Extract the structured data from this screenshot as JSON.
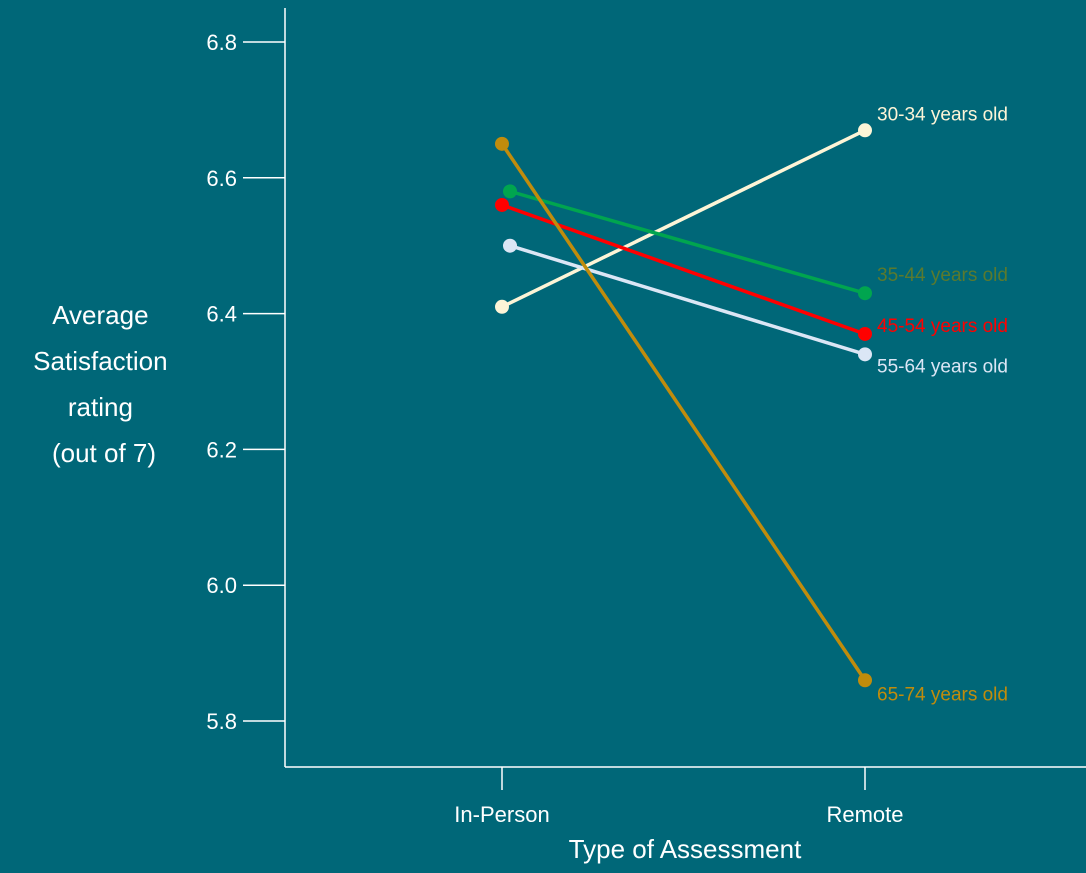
{
  "chart_data": {
    "type": "line",
    "categories": [
      "In-Person",
      "Remote"
    ],
    "xlabel": "Type of Assessment",
    "ylabel_lines": [
      "Average",
      "Satisfaction",
      "rating",
      "(out of 7)"
    ],
    "ylim": [
      5.8,
      6.8
    ],
    "yticks": [
      5.8,
      6.0,
      6.2,
      6.4,
      6.6,
      6.8
    ],
    "ytick_labels": [
      "5.8",
      "6.0",
      "6.2",
      "6.4",
      "6.6",
      "6.8"
    ],
    "grid": false,
    "background": "#006778",
    "series": [
      {
        "name": "30-34 years old",
        "values": [
          6.41,
          6.67
        ],
        "color": "#fdf5d7",
        "label_color": "#fdf5d7"
      },
      {
        "name": "35-44 years old",
        "values": [
          6.58,
          6.43
        ],
        "color": "#00a54f",
        "label_color": "#5a7a2e"
      },
      {
        "name": "45-54 years old",
        "values": [
          6.56,
          6.37
        ],
        "color": "#ff0000",
        "label_color": "#ff0000"
      },
      {
        "name": "55-64 years old",
        "values": [
          6.5,
          6.34
        ],
        "color": "#dbe6f5",
        "label_color": "#dbe6f5"
      },
      {
        "name": "65-74 years old",
        "values": [
          6.65,
          5.86
        ],
        "color": "#c08c0c",
        "label_color": "#c08c0c"
      }
    ]
  }
}
